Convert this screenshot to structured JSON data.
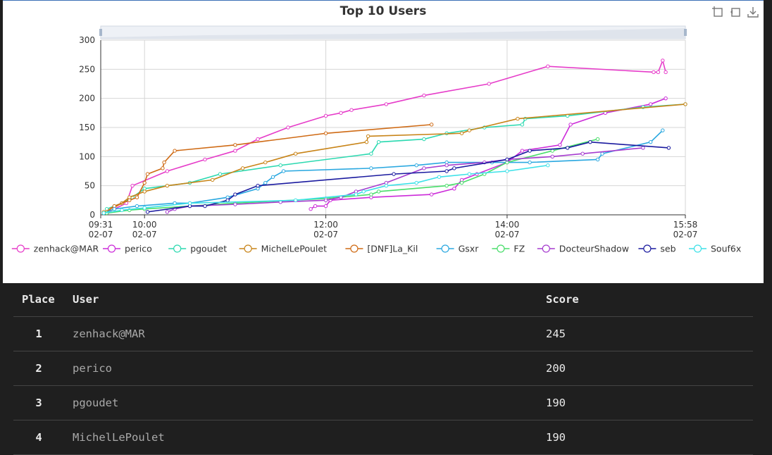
{
  "toolbar": {
    "icons": [
      "zoom-icon",
      "zoom-reset-icon",
      "save-image-icon"
    ]
  },
  "chart_data": {
    "type": "line",
    "title": "Top 10 Users",
    "xlabel": "",
    "ylabel": "",
    "ylim": [
      0,
      300
    ],
    "yticks": [
      "0",
      "50",
      "100",
      "150",
      "200",
      "250",
      "300"
    ],
    "xticks": [
      {
        "t": "09:31",
        "d": "02-07"
      },
      {
        "t": "10:00",
        "d": "02-07"
      },
      {
        "t": "12:00",
        "d": "02-07"
      },
      {
        "t": "14:00",
        "d": "02-07"
      },
      {
        "t": "15:58",
        "d": "02-07"
      }
    ],
    "grid": true,
    "legend_position": "bottom",
    "has_datazoom_slider": true,
    "series": [
      {
        "name": "zenhack@MAR",
        "color": "#e63cc9",
        "points": [
          [
            "09:36",
            5
          ],
          [
            "09:48",
            20
          ],
          [
            "09:52",
            50
          ],
          [
            "10:15",
            75
          ],
          [
            "10:40",
            95
          ],
          [
            "11:00",
            110
          ],
          [
            "11:15",
            130
          ],
          [
            "11:35",
            150
          ],
          [
            "12:00",
            170
          ],
          [
            "12:10",
            175
          ],
          [
            "12:17",
            180
          ],
          [
            "12:40",
            190
          ],
          [
            "13:05",
            205
          ],
          [
            "13:48",
            225
          ],
          [
            "14:27",
            255
          ],
          [
            "15:37",
            245
          ],
          [
            "15:40",
            245
          ],
          [
            "15:43",
            265
          ],
          [
            "15:45",
            245
          ]
        ]
      },
      {
        "name": "perico",
        "color": "#cc2bd9",
        "points": [
          [
            "11:50",
            10
          ],
          [
            "11:53",
            15
          ],
          [
            "12:00",
            15
          ],
          [
            "12:03",
            25
          ],
          [
            "12:30",
            30
          ],
          [
            "13:10",
            35
          ],
          [
            "13:25",
            45
          ],
          [
            "13:30",
            60
          ],
          [
            "13:40",
            70
          ],
          [
            "14:00",
            90
          ],
          [
            "14:10",
            110
          ],
          [
            "14:35",
            120
          ],
          [
            "14:42",
            155
          ],
          [
            "15:05",
            175
          ],
          [
            "15:35",
            190
          ],
          [
            "15:45",
            200
          ]
        ]
      },
      {
        "name": "pgoudet",
        "color": "#2bd9b0",
        "points": [
          [
            "09:35",
            10
          ],
          [
            "09:40",
            15
          ],
          [
            "09:45",
            20
          ],
          [
            "09:52",
            30
          ],
          [
            "10:00",
            45
          ],
          [
            "10:30",
            55
          ],
          [
            "10:50",
            70
          ],
          [
            "11:30",
            85
          ],
          [
            "12:30",
            105
          ],
          [
            "12:35",
            125
          ],
          [
            "13:05",
            130
          ],
          [
            "13:20",
            140
          ],
          [
            "13:45",
            150
          ],
          [
            "14:10",
            155
          ],
          [
            "14:12",
            165
          ],
          [
            "14:40",
            170
          ],
          [
            "15:30",
            185
          ],
          [
            "15:58",
            190
          ]
        ]
      },
      {
        "name": "MichelLePoulet",
        "color": "#c88418",
        "points": [
          [
            "09:33",
            5
          ],
          [
            "09:38",
            10
          ],
          [
            "09:45",
            20
          ],
          [
            "09:50",
            30
          ],
          [
            "10:00",
            40
          ],
          [
            "10:15",
            50
          ],
          [
            "10:45",
            60
          ],
          [
            "11:05",
            80
          ],
          [
            "11:20",
            90
          ],
          [
            "11:40",
            105
          ],
          [
            "12:27",
            125
          ],
          [
            "12:28",
            135
          ],
          [
            "13:30",
            140
          ],
          [
            "13:35",
            145
          ],
          [
            "14:07",
            165
          ],
          [
            "15:58",
            190
          ]
        ]
      },
      {
        "name": "[DNF]La_Kil",
        "color": "#cf6a14",
        "points": [
          [
            "09:35",
            5
          ],
          [
            "09:40",
            15
          ],
          [
            "09:50",
            25
          ],
          [
            "09:55",
            30
          ],
          [
            "10:00",
            55
          ],
          [
            "10:02",
            70
          ],
          [
            "10:12",
            80
          ],
          [
            "10:13",
            90
          ],
          [
            "10:20",
            110
          ],
          [
            "11:00",
            120
          ],
          [
            "12:00",
            140
          ],
          [
            "13:10",
            155
          ]
        ]
      },
      {
        "name": "Gsxr",
        "color": "#2aa8e0",
        "points": [
          [
            "09:33",
            3
          ],
          [
            "09:40",
            10
          ],
          [
            "09:55",
            15
          ],
          [
            "10:20",
            20
          ],
          [
            "10:30",
            20
          ],
          [
            "10:55",
            30
          ],
          [
            "11:15",
            45
          ],
          [
            "11:20",
            55
          ],
          [
            "11:25",
            65
          ],
          [
            "11:32",
            75
          ],
          [
            "12:30",
            80
          ],
          [
            "13:00",
            85
          ],
          [
            "13:20",
            90
          ],
          [
            "13:50",
            90
          ],
          [
            "14:15",
            90
          ],
          [
            "15:00",
            95
          ],
          [
            "15:03",
            105
          ],
          [
            "15:35",
            125
          ],
          [
            "15:43",
            145
          ]
        ]
      },
      {
        "name": "FZ",
        "color": "#48dd6a",
        "points": [
          [
            "09:35",
            3
          ],
          [
            "09:50",
            8
          ],
          [
            "10:00",
            10
          ],
          [
            "11:00",
            20
          ],
          [
            "12:00",
            28
          ],
          [
            "12:30",
            35
          ],
          [
            "12:35",
            40
          ],
          [
            "13:20",
            50
          ],
          [
            "13:30",
            55
          ],
          [
            "13:45",
            70
          ],
          [
            "14:00",
            90
          ],
          [
            "14:30",
            110
          ],
          [
            "15:00",
            130
          ]
        ]
      },
      {
        "name": "DocteurShadow",
        "color": "#a63ccf",
        "points": [
          [
            "10:15",
            5
          ],
          [
            "10:20",
            10
          ],
          [
            "10:30",
            15
          ],
          [
            "11:00",
            18
          ],
          [
            "11:30",
            22
          ],
          [
            "12:00",
            25
          ],
          [
            "12:10",
            30
          ],
          [
            "12:20",
            40
          ],
          [
            "12:40",
            55
          ],
          [
            "13:05",
            80
          ],
          [
            "13:20",
            85
          ],
          [
            "13:45",
            90
          ],
          [
            "14:00",
            95
          ],
          [
            "14:30",
            100
          ],
          [
            "14:50",
            105
          ],
          [
            "15:30",
            115
          ]
        ]
      },
      {
        "name": "seb",
        "color": "#1a1a9f",
        "points": [
          [
            "10:02",
            5
          ],
          [
            "10:30",
            15
          ],
          [
            "10:40",
            15
          ],
          [
            "10:55",
            25
          ],
          [
            "11:00",
            35
          ],
          [
            "11:15",
            50
          ],
          [
            "12:45",
            70
          ],
          [
            "13:20",
            75
          ],
          [
            "13:25",
            80
          ],
          [
            "14:00",
            95
          ],
          [
            "14:15",
            110
          ],
          [
            "14:40",
            115
          ],
          [
            "14:55",
            125
          ],
          [
            "15:47",
            115
          ]
        ]
      },
      {
        "name": "Souf6x",
        "color": "#3de1e8",
        "points": [
          [
            "09:33",
            3
          ],
          [
            "09:45",
            8
          ],
          [
            "10:00",
            12
          ],
          [
            "10:30",
            20
          ],
          [
            "11:40",
            25
          ],
          [
            "12:20",
            35
          ],
          [
            "12:25",
            40
          ],
          [
            "12:40",
            50
          ],
          [
            "13:00",
            55
          ],
          [
            "13:15",
            65
          ],
          [
            "13:35",
            70
          ],
          [
            "14:00",
            75
          ],
          [
            "14:27",
            85
          ]
        ]
      }
    ]
  },
  "table": {
    "headers": {
      "place": "Place",
      "user": "User",
      "score": "Score"
    },
    "rows": [
      {
        "place": "1",
        "user": "zenhack@MAR",
        "score": "245"
      },
      {
        "place": "2",
        "user": "perico",
        "score": "200"
      },
      {
        "place": "3",
        "user": "pgoudet",
        "score": "190"
      },
      {
        "place": "4",
        "user": "MichelLePoulet",
        "score": "190"
      }
    ]
  }
}
